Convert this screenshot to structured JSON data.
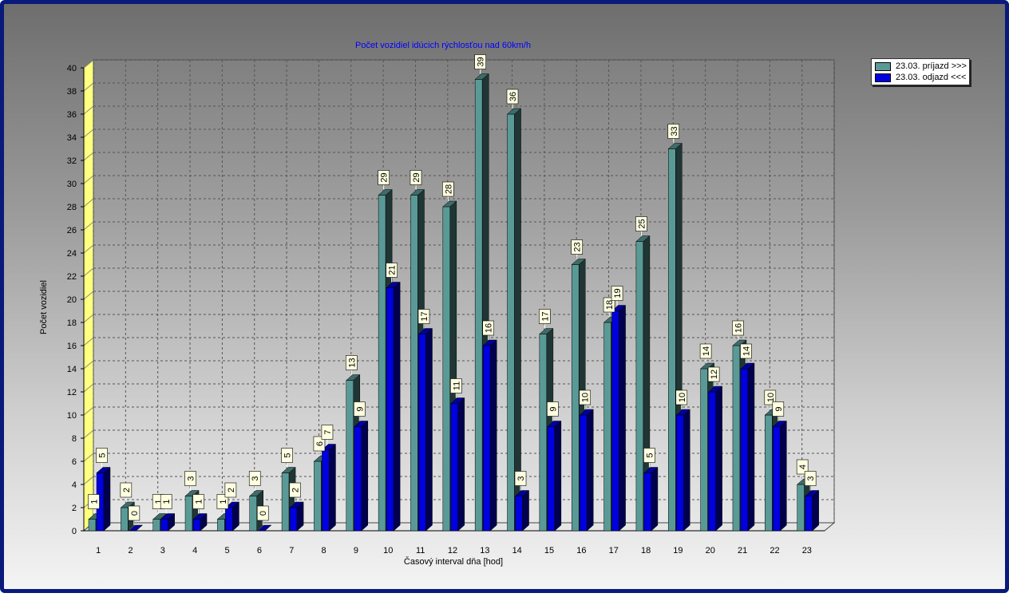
{
  "chart_data": {
    "type": "bar",
    "title": "Počet vozidiel idúcich rýchlosťou nad 60km/h",
    "xlabel": "Časový interval dňa [hod]",
    "ylabel": "Počet vozidiel",
    "ylim": [
      0,
      40
    ],
    "yticks": [
      0,
      2,
      4,
      6,
      8,
      10,
      12,
      14,
      16,
      18,
      20,
      22,
      24,
      26,
      28,
      30,
      32,
      34,
      36,
      38,
      40
    ],
    "grid": true,
    "legend_position": "top-right",
    "categories": [
      "1",
      "2",
      "3",
      "4",
      "5",
      "6",
      "7",
      "8",
      "9",
      "10",
      "11",
      "12",
      "13",
      "14",
      "15",
      "16",
      "17",
      "18",
      "19",
      "20",
      "21",
      "22",
      "23"
    ],
    "series": [
      {
        "name": "23.03.  príjazd >>>",
        "color": "#5a9a96",
        "values": [
          1,
          2,
          1,
          3,
          1,
          3,
          5,
          6,
          13,
          29,
          29,
          28,
          39,
          36,
          17,
          23,
          18,
          25,
          33,
          14,
          16,
          10,
          4
        ]
      },
      {
        "name": "23.03.  odjazd <<<",
        "color": "#0000e0",
        "values": [
          5,
          0,
          1,
          1,
          2,
          0,
          2,
          7,
          9,
          21,
          17,
          11,
          16,
          3,
          9,
          10,
          19,
          5,
          10,
          12,
          14,
          9,
          3
        ]
      }
    ]
  }
}
